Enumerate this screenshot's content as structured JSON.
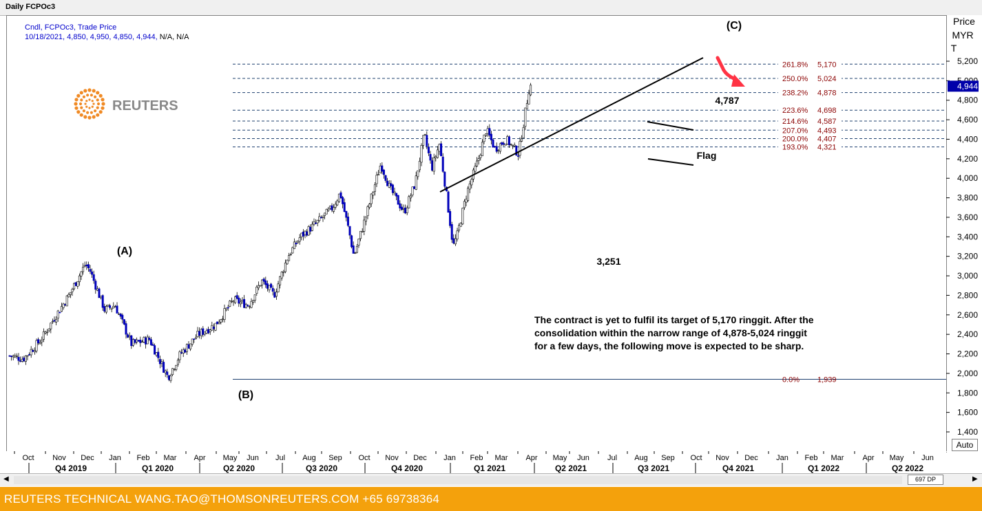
{
  "window": {
    "title": "Daily FCPOc3"
  },
  "legend": {
    "line1": "Cndl, FCPOc3, Trade Price",
    "line2": "10/18/2021, 4,850, 4,950, 4,850, 4,944,",
    "line2_tail": "N/A, N/A"
  },
  "axis": {
    "price_label": "Price",
    "currency": "MYR",
    "unit": "T",
    "current_price": "4,944",
    "auto_button": "Auto",
    "dp_indicator": "697 DP",
    "y_ticks": [
      "5,200",
      "5,000",
      "4,800",
      "4,600",
      "4,400",
      "4,200",
      "4,000",
      "3,800",
      "3,600",
      "3,400",
      "3,200",
      "3,000",
      "2,800",
      "2,600",
      "2,400",
      "2,200",
      "2,000",
      "1,800",
      "1,600",
      "1,400"
    ],
    "months": [
      "Oct",
      "Nov",
      "Dec",
      "Jan",
      "Feb",
      "Mar",
      "Apr",
      "May",
      "Jun",
      "Jul",
      "Aug",
      "Sep",
      "Oct",
      "Nov",
      "Dec",
      "Jan",
      "Feb",
      "Mar",
      "Apr",
      "May",
      "Jun",
      "Jul",
      "Aug",
      "Sep",
      "Oct",
      "Nov",
      "Dec",
      "Jan",
      "Feb",
      "Mar",
      "Apr",
      "May",
      "Jun"
    ],
    "quarters": [
      "Q4 2019",
      "Q1 2020",
      "Q2 2020",
      "Q3 2020",
      "Q4 2020",
      "Q1 2021",
      "Q2 2021",
      "Q3 2021",
      "Q4 2021",
      "Q1 2022",
      "Q2 2022"
    ]
  },
  "logo": {
    "text": "REUTERS"
  },
  "annotations": {
    "wave_a": "(A)",
    "wave_b": "(B)",
    "wave_c": "(C)",
    "low_label": "3,251",
    "high_label": "4,787",
    "flag_label": "Flag",
    "commentary": [
      "The contract is yet to fulfil its target of 5,170 ringgit. After the",
      "consolidation within the narrow range of 4,878-5,024 ringgit",
      "for a few days, the following move is expected to be sharp."
    ]
  },
  "fib_levels": [
    {
      "pct": "261.8%",
      "value": "5,170"
    },
    {
      "pct": "250.0%",
      "value": "5,024"
    },
    {
      "pct": "238.2%",
      "value": "4,878"
    },
    {
      "pct": "223.6%",
      "value": "4,698"
    },
    {
      "pct": "214.6%",
      "value": "4,587"
    },
    {
      "pct": "207.0%",
      "value": "4,493"
    },
    {
      "pct": "200.0%",
      "value": "4,407"
    },
    {
      "pct": "193.0%",
      "value": "4,321"
    },
    {
      "pct": "0.0%",
      "value": "1,939"
    }
  ],
  "footer": {
    "text": "REUTERS TECHNICAL  WANG.TAO@THOMSONREUTERS.COM  +65 69738364"
  },
  "colors": {
    "candle": "#0000bb",
    "fib_text": "#8b0000",
    "fib_line": "#1c3f6e",
    "footer_bg": "#f4a10c",
    "logo_orange": "#f08a24",
    "arrow": "#ff3344"
  },
  "chart_data": {
    "type": "candlestick",
    "ylim": [
      1300,
      5350
    ],
    "x_start": "2019-09-18",
    "key_points": [
      {
        "date": "2019-09-20",
        "close": 2180
      },
      {
        "date": "2019-10-10",
        "close": 2150
      },
      {
        "date": "2019-11-05",
        "close": 2350
      },
      {
        "date": "2019-11-25",
        "close": 2580
      },
      {
        "date": "2019-12-15",
        "close": 2800
      },
      {
        "date": "2020-01-08",
        "close": 3120
      },
      {
        "date": "2020-01-15",
        "close": 3050
      },
      {
        "date": "2020-02-05",
        "close": 2650
      },
      {
        "date": "2020-02-20",
        "close": 2700
      },
      {
        "date": "2020-03-15",
        "close": 2300
      },
      {
        "date": "2020-04-10",
        "close": 2350
      },
      {
        "date": "2020-05-07",
        "close": 1960
      },
      {
        "date": "2020-05-25",
        "close": 2200
      },
      {
        "date": "2020-06-20",
        "close": 2400
      },
      {
        "date": "2020-07-15",
        "close": 2500
      },
      {
        "date": "2020-08-10",
        "close": 2750
      },
      {
        "date": "2020-09-01",
        "close": 2700
      },
      {
        "date": "2020-09-20",
        "close": 2950
      },
      {
        "date": "2020-10-08",
        "close": 2800
      },
      {
        "date": "2020-10-28",
        "close": 3200
      },
      {
        "date": "2020-11-15",
        "close": 3400
      },
      {
        "date": "2020-12-10",
        "close": 3550
      },
      {
        "date": "2021-01-01",
        "close": 3700
      },
      {
        "date": "2021-01-12",
        "close": 3850
      },
      {
        "date": "2021-01-25",
        "close": 3450
      },
      {
        "date": "2021-02-01",
        "close": 3200
      },
      {
        "date": "2021-02-20",
        "close": 3650
      },
      {
        "date": "2021-03-12",
        "close": 4150
      },
      {
        "date": "2021-03-25",
        "close": 3900
      },
      {
        "date": "2021-04-15",
        "close": 3650
      },
      {
        "date": "2021-05-01",
        "close": 3950
      },
      {
        "date": "2021-05-14",
        "close": 4450
      },
      {
        "date": "2021-05-25",
        "close": 4100
      },
      {
        "date": "2021-06-05",
        "close": 4350
      },
      {
        "date": "2021-06-15",
        "close": 3850
      },
      {
        "date": "2021-06-25",
        "close": 3300
      },
      {
        "date": "2021-07-01",
        "close": 3420
      },
      {
        "date": "2021-07-15",
        "close": 3850
      },
      {
        "date": "2021-08-01",
        "close": 4200
      },
      {
        "date": "2021-08-12",
        "close": 4500
      },
      {
        "date": "2021-08-25",
        "close": 4300
      },
      {
        "date": "2021-09-10",
        "close": 4400
      },
      {
        "date": "2021-09-28",
        "close": 4250
      },
      {
        "date": "2021-10-05",
        "close": 4550
      },
      {
        "date": "2021-10-10",
        "close": 4780
      },
      {
        "date": "2021-10-14",
        "close": 4950
      },
      {
        "date": "2021-10-18",
        "close": 4944
      }
    ]
  }
}
